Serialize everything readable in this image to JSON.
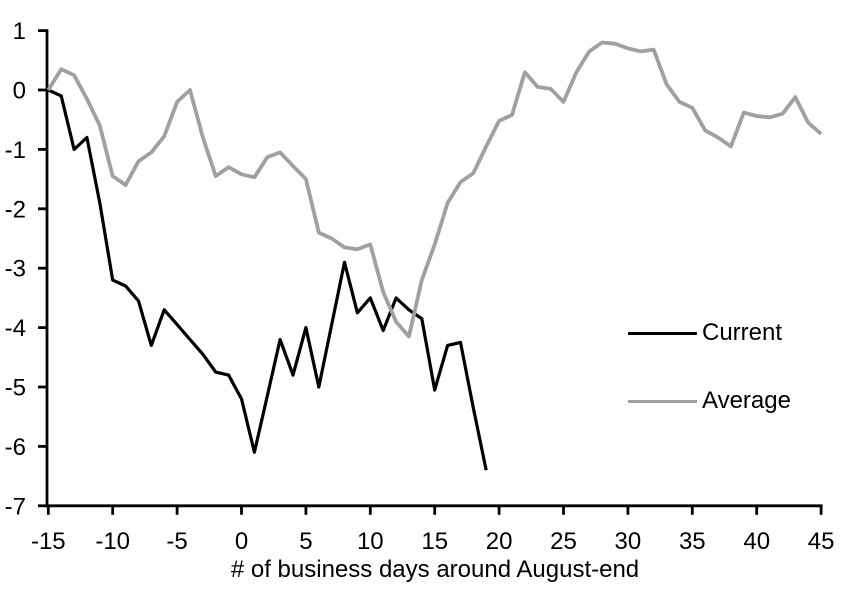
{
  "chart_data": {
    "type": "line",
    "title": "",
    "xlabel": "# of business days around August-end",
    "ylabel": "",
    "xlim": [
      -15,
      45
    ],
    "ylim": [
      -7,
      1
    ],
    "x_ticks": [
      -15,
      -10,
      -5,
      0,
      5,
      10,
      15,
      20,
      25,
      30,
      35,
      40,
      45
    ],
    "y_ticks": [
      1,
      0,
      -1,
      -2,
      -3,
      -4,
      -5,
      -6,
      -7
    ],
    "grid": false,
    "legend_position": "right-middle",
    "series": [
      {
        "name": "Current",
        "color": "#000000",
        "stroke_width": 3.2,
        "x_start": -15,
        "x_end": 19,
        "values": [
          0,
          -0.1,
          -1.0,
          -0.8,
          -1.9,
          -3.2,
          -3.3,
          -3.55,
          -4.3,
          -3.7,
          -3.95,
          -4.2,
          -4.45,
          -4.75,
          -4.8,
          -5.2,
          -6.1,
          -5.15,
          -4.2,
          -4.8,
          -4.0,
          -5.0,
          -3.95,
          -2.9,
          -3.75,
          -3.5,
          -4.05,
          -3.5,
          -3.7,
          -3.85,
          -5.05,
          -4.3,
          -4.25,
          -5.35,
          -6.4
        ]
      },
      {
        "name": "Average",
        "color": "#a0a0a0",
        "stroke_width": 3.8,
        "x_start": -15,
        "x_end": 45,
        "values": [
          0,
          0.35,
          0.25,
          -0.15,
          -0.6,
          -1.45,
          -1.6,
          -1.2,
          -1.05,
          -0.78,
          -0.2,
          0.0,
          -0.8,
          -1.45,
          -1.3,
          -1.42,
          -1.47,
          -1.13,
          -1.05,
          -1.28,
          -1.5,
          -2.4,
          -2.5,
          -2.65,
          -2.68,
          -2.6,
          -3.4,
          -3.9,
          -4.15,
          -3.2,
          -2.6,
          -1.9,
          -1.55,
          -1.4,
          -0.95,
          -0.52,
          -0.42,
          0.3,
          0.05,
          0.02,
          -0.2,
          0.3,
          0.65,
          0.8,
          0.78,
          0.7,
          0.65,
          0.68,
          0.1,
          -0.2,
          -0.3,
          -0.68,
          -0.8,
          -0.95,
          -0.38,
          -0.44,
          -0.46,
          -0.4,
          -0.12,
          -0.55,
          -0.74
        ]
      }
    ]
  },
  "colors": {
    "axis": "#000000",
    "tick_label": "#000000",
    "background": "#ffffff"
  }
}
